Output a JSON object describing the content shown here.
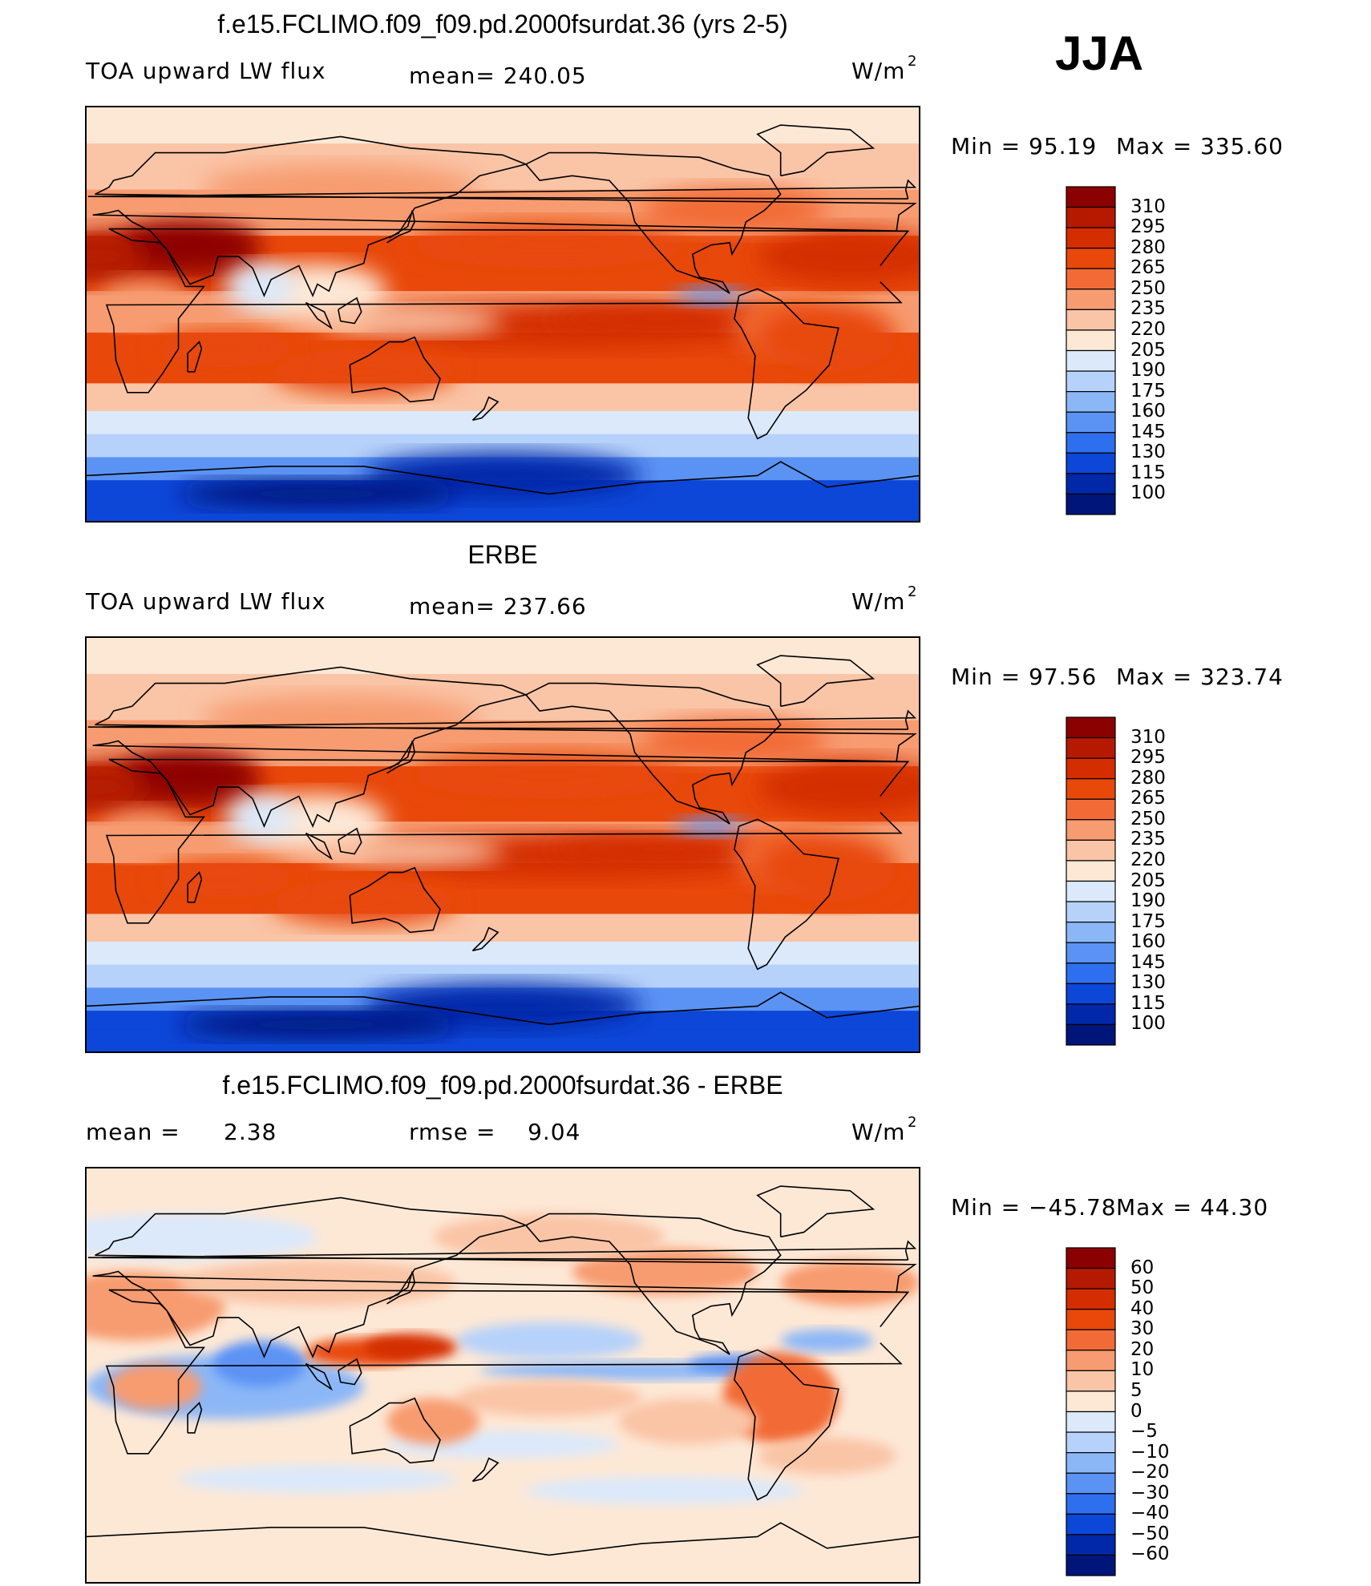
{
  "header": {
    "season": "JJA"
  },
  "chart_data": [
    {
      "type": "heatmap",
      "title": "f.e15.FCLIMO.f09_f09.pd.2000fsurdat.36 (yrs 2-5)",
      "variable": "TOA upward LW flux",
      "stat1": "mean= 240.05",
      "stat2": "",
      "units": "W/m",
      "units_sup": "2",
      "min_label": "Min =",
      "min_value": "95.19",
      "max_label": "Max =",
      "max_value": "335.60",
      "stat_values": {
        "mean": 240.05,
        "min": 95.19,
        "max": 335.6
      },
      "colorbar_ticks": [
        "310",
        "295",
        "280",
        "265",
        "250",
        "235",
        "220",
        "205",
        "190",
        "175",
        "160",
        "145",
        "130",
        "115",
        "100"
      ],
      "colorbar_colors": [
        "#8b0000",
        "#b51a00",
        "#d42d00",
        "#e8480a",
        "#f26b36",
        "#f79b70",
        "#fac4a6",
        "#fde8d6",
        "#dbe9fb",
        "#b6d2fa",
        "#8cb7f7",
        "#5b93f4",
        "#2e6ff0",
        "#0d47d8",
        "#0028a8",
        "#00157a"
      ],
      "plot_style": "model"
    },
    {
      "type": "heatmap",
      "title": "ERBE",
      "variable": "TOA upward LW flux",
      "stat1": "mean= 237.66",
      "stat2": "",
      "units": "W/m",
      "units_sup": "2",
      "min_label": "Min =",
      "min_value": "97.56",
      "max_label": "Max =",
      "max_value": "323.74",
      "stat_values": {
        "mean": 237.66,
        "min": 97.56,
        "max": 323.74
      },
      "colorbar_ticks": [
        "310",
        "295",
        "280",
        "265",
        "250",
        "235",
        "220",
        "205",
        "190",
        "175",
        "160",
        "145",
        "130",
        "115",
        "100"
      ],
      "colorbar_colors": [
        "#8b0000",
        "#b51a00",
        "#d42d00",
        "#e8480a",
        "#f26b36",
        "#f79b70",
        "#fac4a6",
        "#fde8d6",
        "#dbe9fb",
        "#b6d2fa",
        "#8cb7f7",
        "#5b93f4",
        "#2e6ff0",
        "#0d47d8",
        "#0028a8",
        "#00157a"
      ],
      "plot_style": "obs"
    },
    {
      "type": "heatmap",
      "title": "f.e15.FCLIMO.f09_f09.pd.2000fsurdat.36 - ERBE",
      "variable": "mean =",
      "stat1": "2.38",
      "stat2": "rmse =    9.04",
      "units": "W/m",
      "units_sup": "2",
      "min_label": "Min =",
      "min_value": "−45.78",
      "max_label": "Max =",
      "max_value": "44.30",
      "stat_values": {
        "mean": 2.38,
        "rmse": 9.04,
        "min": -45.78,
        "max": 44.3
      },
      "colorbar_ticks": [
        "60",
        "50",
        "40",
        "30",
        "20",
        "10",
        "5",
        "0",
        "−5",
        "−10",
        "−20",
        "−30",
        "−40",
        "−50",
        "−60"
      ],
      "colorbar_colors": [
        "#8b0000",
        "#b51a00",
        "#d42d00",
        "#e8480a",
        "#f26b36",
        "#f79b70",
        "#fac4a6",
        "#fde8d6",
        "#dbe9fb",
        "#b6d2fa",
        "#8cb7f7",
        "#5b93f4",
        "#2e6ff0",
        "#0d47d8",
        "#0028a8",
        "#00157a"
      ],
      "plot_style": "diff"
    }
  ]
}
